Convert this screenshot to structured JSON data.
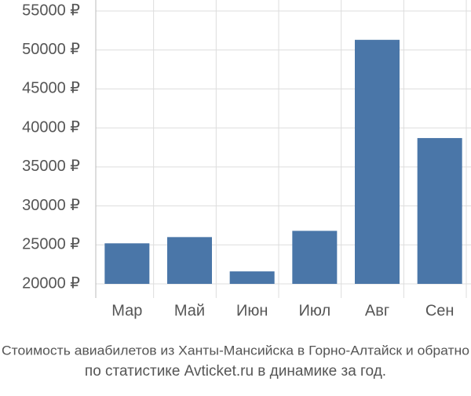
{
  "chart_data": {
    "type": "bar",
    "title": "Стоимость авиабилетов из Ханты-Мансийска в Горно-Алтайск и обратно",
    "subtitle": "по статистике Avticket.ru в динамике за год.",
    "categories": [
      "Мар",
      "Май",
      "Июн",
      "Июл",
      "Авг",
      "Сен"
    ],
    "values": [
      25200,
      26000,
      21600,
      26800,
      51300,
      38700
    ],
    "color": "#4a76a8",
    "ylim": [
      20000,
      55000
    ],
    "yticks": [
      {
        "value": 20000,
        "label": "20000 ₽"
      },
      {
        "value": 25000,
        "label": "25000 ₽"
      },
      {
        "value": 30000,
        "label": "30000 ₽"
      },
      {
        "value": 35000,
        "label": "35000 ₽"
      },
      {
        "value": 40000,
        "label": "40000 ₽"
      },
      {
        "value": 45000,
        "label": "45000 ₽"
      },
      {
        "value": 50000,
        "label": "50000 ₽"
      },
      {
        "value": 55000,
        "label": "55000 ₽"
      }
    ],
    "grid": true
  }
}
